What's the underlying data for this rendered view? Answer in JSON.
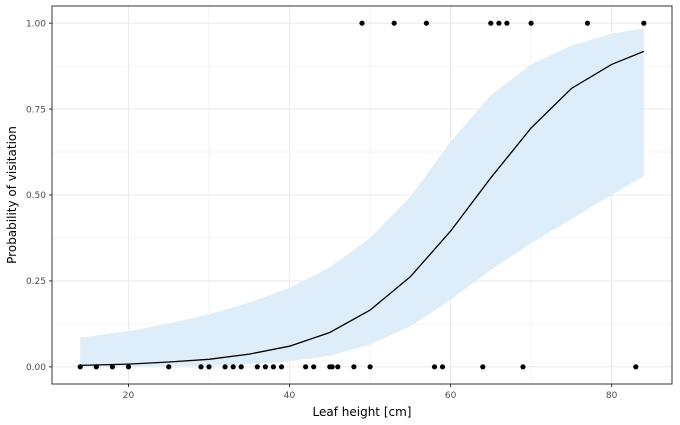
{
  "chart_data": {
    "type": "scatter",
    "xlabel": "Leaf height [cm]",
    "ylabel": "Probability of visitation",
    "xlim": [
      10.5,
      87.5
    ],
    "ylim": [
      -0.05,
      1.05
    ],
    "x_ticks": [
      20,
      40,
      60,
      80
    ],
    "y_ticks": [
      0.0,
      0.25,
      0.5,
      0.75,
      1.0
    ],
    "x_tick_labels": [
      "20",
      "40",
      "60",
      "80"
    ],
    "y_tick_labels": [
      "0.00",
      "0.25",
      "0.50",
      "0.75",
      "1.00"
    ],
    "grid": true,
    "theme": "bw",
    "observations": {
      "x": [
        14,
        16,
        18,
        20,
        25,
        29,
        30,
        32,
        33,
        34,
        36,
        37,
        38,
        39,
        42,
        43,
        45,
        45.3,
        46,
        48,
        49,
        50,
        53,
        57,
        58,
        59,
        64,
        65,
        66,
        67,
        69,
        70,
        77,
        83,
        84
      ],
      "y": [
        0,
        0,
        0,
        0,
        0,
        0,
        0,
        0,
        0,
        0,
        0,
        0,
        0,
        0,
        0,
        0,
        0,
        0,
        0,
        0,
        1,
        0,
        1,
        1,
        0,
        0,
        0,
        1,
        1,
        1,
        0,
        1,
        1,
        0,
        1
      ]
    },
    "fit_curve": {
      "x": [
        14,
        20,
        25,
        30,
        35,
        40,
        45,
        50,
        55,
        60,
        65,
        70,
        75,
        80,
        84
      ],
      "y": [
        0.004,
        0.008,
        0.014,
        0.022,
        0.037,
        0.06,
        0.1,
        0.165,
        0.262,
        0.395,
        0.55,
        0.695,
        0.81,
        0.88,
        0.918
      ]
    },
    "confidence_band": {
      "x": [
        14,
        20,
        25,
        30,
        35,
        40,
        45,
        50,
        55,
        60,
        65,
        70,
        75,
        80,
        84
      ],
      "lower": [
        0.0005,
        0.001,
        0.002,
        0.003,
        0.007,
        0.016,
        0.032,
        0.065,
        0.118,
        0.195,
        0.282,
        0.36,
        0.43,
        0.5,
        0.555
      ],
      "upper": [
        0.085,
        0.104,
        0.126,
        0.153,
        0.187,
        0.23,
        0.29,
        0.375,
        0.495,
        0.655,
        0.79,
        0.88,
        0.935,
        0.97,
        0.985
      ]
    },
    "colors": {
      "curve": "#000000",
      "band": "#deedfa",
      "points": "#000000",
      "grid": "#ebebeb",
      "panel_border": "#333333"
    }
  }
}
